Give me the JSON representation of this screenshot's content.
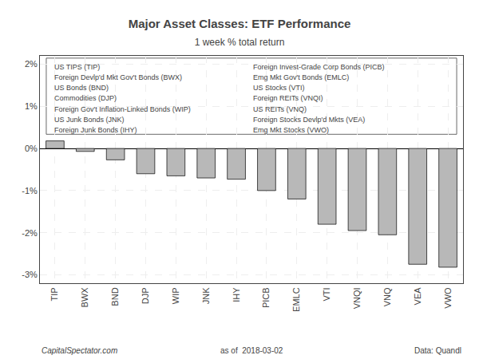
{
  "chart_data": {
    "type": "bar",
    "title": "Major Asset Classes: ETF Performance",
    "subtitle": "1 week % total return",
    "categories": [
      "TIP",
      "BWX",
      "BND",
      "DJP",
      "WIP",
      "JNK",
      "IHY",
      "PICB",
      "EMLC",
      "VTI",
      "VNQI",
      "VNQ",
      "VEA",
      "VWO"
    ],
    "values": [
      0.18,
      -0.07,
      -0.27,
      -0.6,
      -0.65,
      -0.7,
      -0.73,
      -1.0,
      -1.2,
      -1.8,
      -1.95,
      -2.05,
      -2.75,
      -2.82
    ],
    "color": "#b8b8b8",
    "ylim": [
      -3.2,
      2.2
    ],
    "yticks": [
      {
        "value": -3,
        "label": "-3%"
      },
      {
        "value": -2,
        "label": "-2%"
      },
      {
        "value": -1,
        "label": "-1%"
      },
      {
        "value": 0,
        "label": "0%"
      },
      {
        "value": 1,
        "label": "1%"
      },
      {
        "value": 2,
        "label": "2%"
      }
    ],
    "grid": true,
    "annotations": [
      "US TIPS (TIP)",
      "Foreign Devlp'd Mkt Gov't Bonds (BWX)",
      "US Bonds (BND)",
      "Commodities (DJP)",
      "Foreign Gov't Inflation-Linked Bonds (WIP)",
      "US Junk Bonds (JNK)",
      "Foreign Junk Bonds (IHY)",
      "Foreign Invest-Grade Corp Bonds (PICB)",
      "Emg Mkt Gov't Bonds (EMLC)",
      "US Stocks (VTI)",
      "Foreign REITs (VNQI)",
      "US REITs (VNQ)",
      "Foreign Stocks Devlp'd Mkts (VEA)",
      "Emg Mkt Stocks (VWO)"
    ],
    "footer": [
      "CapitalSpectator.com",
      "as of  2018-03-02",
      "Data: Quandl"
    ]
  }
}
